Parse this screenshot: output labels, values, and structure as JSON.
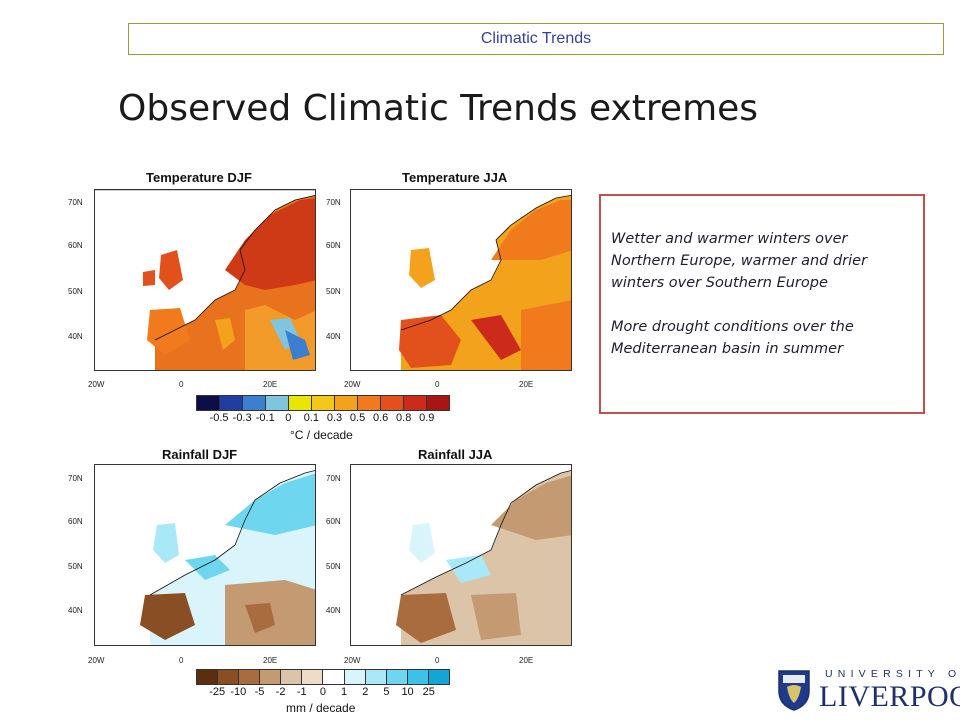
{
  "header": {
    "label": "Climatic Trends"
  },
  "slide": {
    "title": "Observed Climatic Trends extremes"
  },
  "maps": {
    "temp_djf": {
      "title": "Temperature DJF"
    },
    "temp_jja": {
      "title": "Temperature JJA"
    },
    "rain_djf": {
      "title": "Rainfall DJF"
    },
    "rain_jja": {
      "title": "Rainfall JJA"
    },
    "lat_labels": [
      "70N",
      "60N",
      "50N",
      "40N"
    ],
    "lon_labels": [
      "20W",
      "0",
      "20E"
    ]
  },
  "temperature_colorbar": {
    "colors": [
      "#0d0d4a",
      "#1f3ea0",
      "#3b7fd0",
      "#7fc5e0",
      "#e6e600",
      "#f3c81a",
      "#f4a21c",
      "#f07a1c",
      "#e2511c",
      "#cc2a1a",
      "#a81512"
    ],
    "ticks": [
      "-0.5",
      "-0.3",
      "-0.1",
      "0",
      "0.1",
      "0.3",
      "0.5",
      "0.6",
      "0.8",
      "0.9"
    ],
    "unit": "°C / decade"
  },
  "rainfall_colorbar": {
    "colors": [
      "#5a2e0e",
      "#8a4e24",
      "#a86c3e",
      "#c39a72",
      "#dcc4a8",
      "#ecdcc8",
      "#ffffff",
      "#d9f4fb",
      "#a9e8f6",
      "#6fd6f0",
      "#3ac2e8",
      "#12a6d6"
    ],
    "ticks": [
      "-25",
      "-10",
      "-5",
      "-2",
      "-1",
      "0",
      "1",
      "2",
      "5",
      "10",
      "25"
    ],
    "unit": "mm / decade"
  },
  "notes": {
    "paragraph1": "Wetter and warmer winters over Northern Europe, warmer and drier winters over Southern Europe",
    "paragraph2": "More drought conditions over the Mediterranean basin in summer"
  },
  "logo": {
    "top_text": "UNIVERSITY OF",
    "main_text": "LIVERPOOL",
    "colors": {
      "navy": "#1f2f6a",
      "shield": "#1f3a8a"
    }
  }
}
